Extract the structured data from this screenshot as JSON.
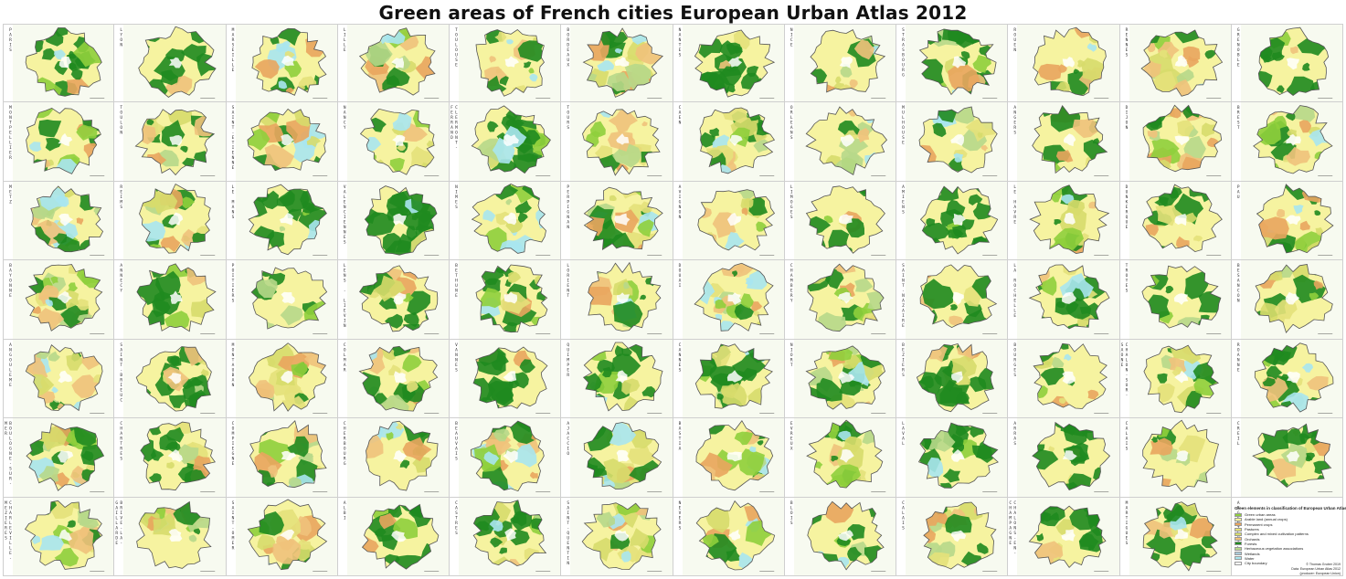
{
  "title": "Green areas of French cities European Urban Atlas 2012",
  "cities": [
    "PARIS",
    "LYON",
    "MARSEILLE",
    "LILLE",
    "TOULOUSE",
    "BORDEAUX",
    "NANTES",
    "NICE",
    "STRASBOURG",
    "ROUEN",
    "RENNES",
    "GRENOBLE",
    "MONTPELLIER",
    "TOULON",
    "SAINT-ETIENNE",
    "NANCY",
    "CLERMONT-FERRAND",
    "TOURS",
    "CAEN",
    "ORLEANS",
    "MULHOUSE",
    "ANGERS",
    "DIJON",
    "BREST",
    "METZ",
    "REIMS",
    "LE MANS",
    "VALENCIENNES",
    "NIMES",
    "PERPIGNAN",
    "AVIGNON",
    "LIMOGES",
    "AMIENS",
    "LE HAVRE",
    "DUNKERQUE",
    "PAU",
    "BAYONNE",
    "ANNECY",
    "POITIERS",
    "LENS - LIEVIN",
    "BETHUNE",
    "LORIENT",
    "DOUAI",
    "CHAMBERY",
    "SAINT-NAZAIRE",
    "LA ROCHELLE",
    "TROYES",
    "BESANCON",
    "ANGOULEME",
    "SAINT-BRIEUC",
    "MONTAUBAN",
    "COLMAR",
    "VANNES",
    "QUIMPER",
    "CANNES",
    "NIORT",
    "BEZIERS",
    "BOURGES",
    "CHALON-SUR-SAONE",
    "ROANNE",
    "BOULOGNE-SUR-MER",
    "CHARTRES",
    "COMPIEGNE",
    "CHERBOURG",
    "BEAUVAIS",
    "AJACCIO",
    "BASTIA",
    "EVREUX",
    "LAVAL",
    "ARRAS",
    "CALAIS",
    "CREIL",
    "CHARLEVILLE-MEZIERES",
    "BRIVE-LA-GAILLARDE",
    "SAINT-OMER",
    "ALBI",
    "CASTRES",
    "SAINT-QUENTIN",
    "NEVERS",
    "BLOIS",
    "CALAIS",
    "CHALONS-EN-CHAMPAGNE",
    "MARTIGUES",
    "ARGENTEUIL"
  ],
  "colors": {
    "green_urban": "#8fcf3c",
    "arable": "#f6f3a0",
    "permanent_crops": "#e9a55e",
    "pastures": "#e4e17a",
    "complex": "#d7dc6c",
    "orchards": "#f0c27b",
    "forests": "#1f8a1f",
    "herbaceous": "#b7d88a",
    "wetlands": "#a9c8d8",
    "water": "#a8e6ef",
    "boundary": "#555555"
  },
  "legend": {
    "title": "Green elements in classification of European Urban Atlas 2012",
    "items": [
      {
        "label": "Green urban areas",
        "color": "#8fcf3c"
      },
      {
        "label": "Arable land (annual crops)",
        "color": "#f6f3a0"
      },
      {
        "label": "Permanent crops",
        "color": "#e9a55e"
      },
      {
        "label": "Pastures",
        "color": "#e4e17a"
      },
      {
        "label": "Complex and mixed cultivation patterns",
        "color": "#d7dc6c"
      },
      {
        "label": "Orchards",
        "color": "#f0c27b"
      },
      {
        "label": "Forests",
        "color": "#1f8a1f"
      },
      {
        "label": "Herbaceous vegetation associations",
        "color": "#b7d88a"
      },
      {
        "label": "Wetlands",
        "color": "#a9c8d8"
      },
      {
        "label": "Water",
        "color": "#a8e6ef"
      },
      {
        "label": "City boundary",
        "color": "#ffffff"
      }
    ]
  },
  "credits": {
    "line1": "© Thomas Gruber 2019",
    "line2": "Data: European Urban Atlas 2012",
    "line3": "(producer: European Union)"
  }
}
